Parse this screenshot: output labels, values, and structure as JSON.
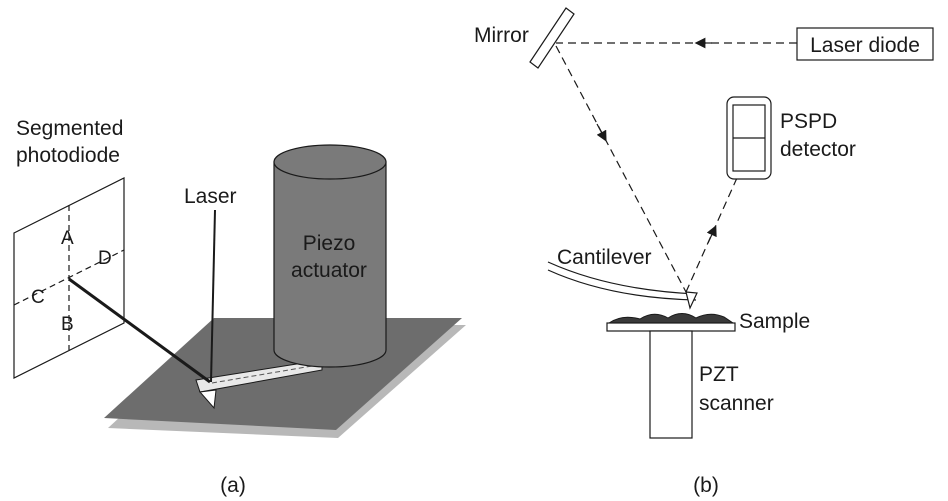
{
  "panel_a": {
    "caption": "(a)",
    "photodiode_label_line1": "Segmented",
    "photodiode_label_line2": "photodiode",
    "quadrant_a": "A",
    "quadrant_b": "B",
    "quadrant_c": "C",
    "quadrant_d": "D",
    "laser_label": "Laser",
    "actuator_label_line1": "Piezo",
    "actuator_label_line2": "actuator"
  },
  "panel_b": {
    "caption": "(b)",
    "mirror_label": "Mirror",
    "laser_diode_label": "Laser diode",
    "detector_label_line1": "PSPD",
    "detector_label_line2": "detector",
    "cantilever_label": "Cantilever",
    "sample_label": "Sample",
    "scanner_label_line1": "PZT",
    "scanner_label_line2": "scanner"
  },
  "colors": {
    "base_plate": "#6d6d6d",
    "base_shadow": "#b8b8b8",
    "cylinder": "#7a7a7a",
    "line": "#1a1a1a"
  }
}
